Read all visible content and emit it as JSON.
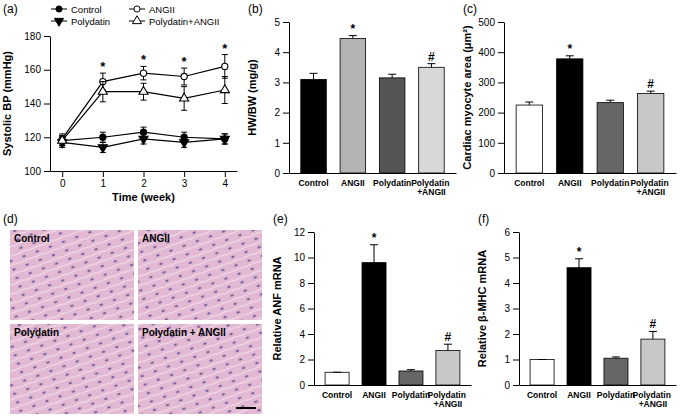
{
  "chart_data": [
    {
      "type": "line",
      "title": "(a)",
      "x": [
        0,
        1,
        2,
        3,
        4
      ],
      "xlim": [
        -0.3,
        4.3
      ],
      "xticks": [
        0,
        1,
        2,
        3,
        4
      ],
      "x_label": "Time (week)",
      "y_label": "Systolic BP (mmHg)",
      "ylim": [
        100,
        180
      ],
      "yticks": [
        100,
        120,
        140,
        160,
        180
      ],
      "legend": "top",
      "series": [
        {
          "name": "Control",
          "color": "#000000",
          "marker": "circle",
          "values": [
            118,
            120,
            123,
            120,
            119
          ],
          "errors": [
            3,
            3,
            3,
            3,
            3
          ]
        },
        {
          "name": "ANGII",
          "color": "#000000",
          "marker": "circle-open",
          "values": [
            119,
            153,
            158,
            156,
            162
          ],
          "errors": [
            3,
            5,
            4,
            5,
            7
          ]
        },
        {
          "name": "Polydatin",
          "color": "#000000",
          "marker": "triangle-down",
          "values": [
            117,
            114,
            119,
            117,
            119
          ],
          "errors": [
            3,
            3,
            3,
            3,
            3
          ]
        },
        {
          "name": "Polydatin+ANGII",
          "color": "#000000",
          "marker": "triangle-up-open",
          "values": [
            118,
            147,
            147,
            143,
            148
          ],
          "errors": [
            3,
            6,
            5,
            7,
            8
          ]
        }
      ],
      "annotations": [
        null,
        "*",
        "*",
        "*",
        "*"
      ]
    },
    {
      "type": "bar",
      "title": "(b)",
      "categories": [
        "Control",
        "ANGII",
        "Polydatin",
        "Polydatin +ANGII"
      ],
      "values": [
        3.1,
        4.45,
        3.15,
        3.5
      ],
      "errors": [
        0.2,
        0.1,
        0.12,
        0.12
      ],
      "colors": [
        "#000000",
        "#b4b4b4",
        "#555555",
        "#d8d8d8"
      ],
      "y_label": "HW/BW (mg/g)",
      "ylim": [
        0,
        5
      ],
      "yticks": [
        0,
        1,
        2,
        3,
        4,
        5
      ],
      "annotations": [
        null,
        "*",
        null,
        "#"
      ]
    },
    {
      "type": "bar",
      "title": "(c)",
      "categories": [
        "Control",
        "ANGII",
        "Polydatin",
        "Polydatin +ANGII"
      ],
      "values": [
        225,
        378,
        233,
        263
      ],
      "errors": [
        10,
        10,
        8,
        8
      ],
      "colors": [
        "#ffffff",
        "#000000",
        "#666666",
        "#c8c8c8"
      ],
      "y_label": "Cardiac myocyte area (μm²)",
      "ylim": [
        0,
        500
      ],
      "yticks": [
        0,
        100,
        200,
        300,
        400,
        500
      ],
      "annotations": [
        null,
        "*",
        null,
        "#"
      ]
    },
    {
      "type": "image",
      "title": "(d)",
      "labels": [
        "Control",
        "ANGII",
        "Polydatin",
        "Polydatin + ANGII"
      ]
    },
    {
      "type": "bar",
      "title": "(e)",
      "categories": [
        "Control",
        "ANGII",
        "Polydatin",
        "Polydatin +ANGII"
      ],
      "values": [
        1,
        9.6,
        1.1,
        2.7
      ],
      "errors": [
        0,
        1.4,
        0.1,
        0.5
      ],
      "colors": [
        "#ffffff",
        "#000000",
        "#666666",
        "#c8c8c8"
      ],
      "y_label": "Relative ANF mRNA",
      "ylim": [
        0,
        12
      ],
      "yticks": [
        0,
        2,
        4,
        6,
        8,
        10,
        12
      ],
      "annotations": [
        null,
        "*",
        null,
        "#"
      ]
    },
    {
      "type": "bar",
      "title": "(f)",
      "categories": [
        "Control",
        "ANGII",
        "Polydatin",
        "Polydatin +ANGII"
      ],
      "values": [
        1,
        4.6,
        1.05,
        1.8
      ],
      "errors": [
        0,
        0.35,
        0.05,
        0.3
      ],
      "colors": [
        "#ffffff",
        "#000000",
        "#666666",
        "#c8c8c8"
      ],
      "y_label": "Relative β-MHC mRNA",
      "ylim": [
        0,
        6
      ],
      "yticks": [
        0,
        1,
        2,
        3,
        4,
        5,
        6
      ],
      "annotations": [
        null,
        "*",
        null,
        "#"
      ]
    }
  ]
}
